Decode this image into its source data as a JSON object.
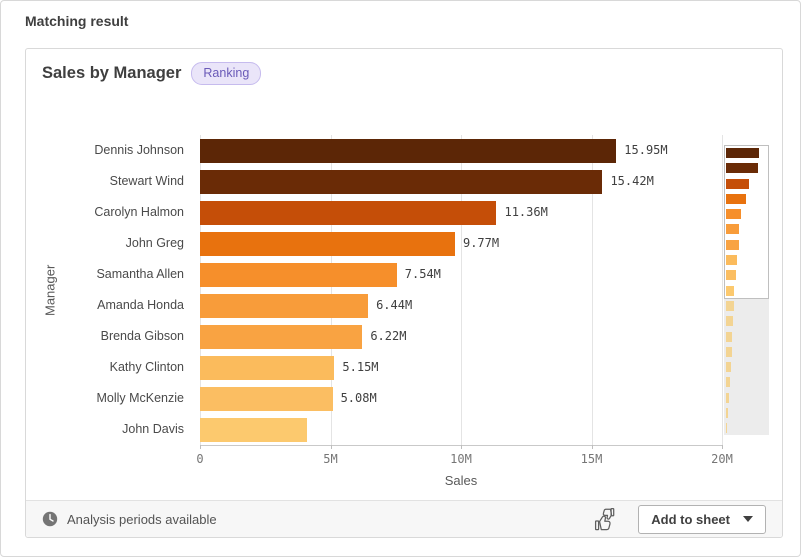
{
  "page_title": "Matching result",
  "card": {
    "title": "Sales by Manager",
    "badge": "Ranking"
  },
  "chart_data": {
    "type": "bar",
    "orientation": "horizontal",
    "title": "Sales by Manager",
    "xlabel": "Sales",
    "ylabel": "Manager",
    "xlim_millions": [
      0,
      20
    ],
    "x_tick_labels": [
      "0",
      "5M",
      "10M",
      "15M",
      "20M"
    ],
    "grid": true,
    "legend": "none",
    "categories": [
      "Dennis Johnson",
      "Stewart Wind",
      "Carolyn Halmon",
      "John Greg",
      "Samantha Allen",
      "Amanda Honda",
      "Brenda Gibson",
      "Kathy Clinton",
      "Molly McKenzie",
      "John Davis"
    ],
    "values_millions": [
      15.95,
      15.42,
      11.36,
      9.77,
      7.54,
      6.44,
      6.22,
      5.15,
      5.08,
      4.1
    ],
    "value_labels": [
      "15.95M",
      "15.42M",
      "11.36M",
      "9.77M",
      "7.54M",
      "6.44M",
      "6.22M",
      "5.15M",
      "5.08M",
      ""
    ],
    "bar_colors": [
      "#5c2606",
      "#6a2b06",
      "#c54e08",
      "#e8720e",
      "#f68f2b",
      "#f89c3a",
      "#f9a342",
      "#fbbb5c",
      "#fbbe62",
      "#fcc96e"
    ]
  },
  "minimap": {
    "visible_count": 10,
    "hidden_values_millions": [
      3.7,
      3.3,
      3.0,
      2.7,
      2.3,
      1.9,
      1.5,
      1.1,
      0.6
    ],
    "hidden_bar_color": "#f3d493",
    "scale_max_millions": 21
  },
  "footer": {
    "status": "Analysis periods available",
    "add_button": "Add to sheet"
  },
  "icons": {
    "status": "clock-icon",
    "feedback": "thumbs-up-down-icon",
    "button_caret": "caret-down-icon"
  },
  "colors": {
    "badge_bg": "#eae5f9",
    "badge_text": "#6a5ab8",
    "gridline": "#e4e4e4",
    "axis_line": "#c9c9c9",
    "footer_bg": "#f7f7f7"
  }
}
